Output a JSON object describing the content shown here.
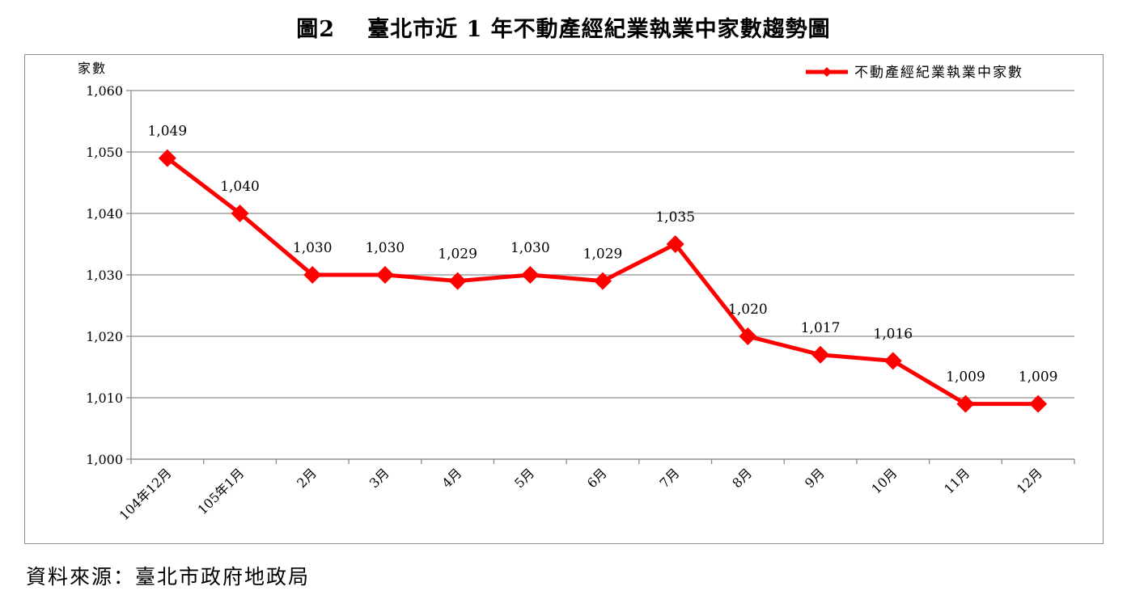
{
  "title": {
    "figure_no": "圖2",
    "text": "臺北市近 1 年不動產經紀業執業中家數趨勢圖"
  },
  "source": "資料來源：臺北市政府地政局",
  "chart_data": {
    "type": "line",
    "title": "臺北市近 1 年不動產經紀業執業中家數趨勢圖",
    "ylabel": "家數",
    "xlabel": "",
    "categories": [
      "104年12月",
      "105年1月",
      "2月",
      "3月",
      "4月",
      "5月",
      "6月",
      "7月",
      "8月",
      "9月",
      "10月",
      "11月",
      "12月"
    ],
    "series": [
      {
        "name": "不動產經紀業執業中家數",
        "values": [
          1049,
          1040,
          1030,
          1030,
          1029,
          1030,
          1029,
          1035,
          1020,
          1017,
          1016,
          1009,
          1009
        ],
        "labels": [
          "1,049",
          "1,040",
          "1,030",
          "1,030",
          "1,029",
          "1,030",
          "1,029",
          "1,035",
          "1,020",
          "1,017",
          "1,016",
          "1,009",
          "1,009"
        ],
        "color": "#ff0000",
        "marker": "diamond"
      }
    ],
    "ylim": [
      1000,
      1060
    ],
    "yticks": [
      1000,
      1010,
      1020,
      1030,
      1040,
      1050,
      1060
    ],
    "ytick_labels": [
      "1,000",
      "1,010",
      "1,020",
      "1,030",
      "1,040",
      "1,050",
      "1,060"
    ],
    "grid": true,
    "legend_position": "top-right",
    "colors": {
      "line": "#ff0000",
      "grid": "#8c8c8c",
      "axis": "#8c8c8c"
    }
  }
}
